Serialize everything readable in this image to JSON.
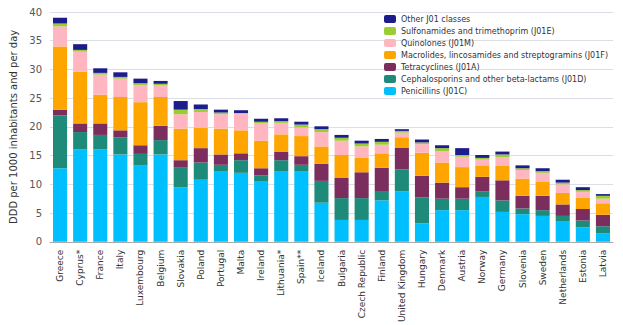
{
  "chart_data": {
    "type": "bar",
    "stacked": true,
    "categories": [
      "Greece",
      "Cyprus*",
      "France",
      "Italy",
      "Luxembourg",
      "Belgium",
      "Slovakia",
      "Poland",
      "Portugal",
      "Malta",
      "Ireland",
      "Lithuania*",
      "Spain**",
      "Iceland",
      "Bulgaria",
      "Czech Republic",
      "Finland",
      "United Kingdom",
      "Hungary",
      "Denmark",
      "Austria",
      "Norway",
      "Germany",
      "Slovenia",
      "Sweden",
      "Netherlands",
      "Estonia",
      "Latvia"
    ],
    "series": [
      {
        "name": "Penicillins (J01C)",
        "color": "#00BFFF",
        "values": [
          12.8,
          16.1,
          16.1,
          15.2,
          13.3,
          15.2,
          9.5,
          10.8,
          12.2,
          12.0,
          10.6,
          12.2,
          12.2,
          6.8,
          3.8,
          3.8,
          7.2,
          8.8,
          3.2,
          5.5,
          5.5,
          7.8,
          5.2,
          4.8,
          4.5,
          3.5,
          2.5,
          1.5
        ]
      },
      {
        "name": "Cephalosporins and other beta-lactams (J01D)",
        "color": "#1E8B7A",
        "values": [
          9.2,
          3.0,
          2.5,
          3.0,
          2.0,
          2.5,
          3.5,
          3.0,
          1.2,
          2.2,
          1.0,
          2.0,
          1.2,
          3.8,
          3.8,
          3.8,
          1.5,
          3.8,
          4.5,
          2.0,
          2.0,
          1.0,
          2.0,
          1.0,
          1.0,
          1.0,
          1.2,
          1.2
        ]
      },
      {
        "name": "Tetracyclines (J01A)",
        "color": "#7B2D5E",
        "values": [
          1.0,
          1.5,
          2.0,
          1.2,
          1.5,
          2.5,
          1.2,
          2.5,
          1.8,
          1.2,
          1.2,
          1.5,
          1.5,
          3.0,
          3.5,
          4.5,
          4.2,
          3.8,
          3.8,
          2.8,
          2.0,
          2.5,
          3.5,
          2.2,
          2.5,
          2.0,
          2.0,
          2.0
        ]
      },
      {
        "name": "Macrolides, lincosamides and streptogramins (J01F)",
        "color": "#FFA500",
        "values": [
          11.0,
          9.0,
          5.0,
          5.8,
          7.5,
          5.0,
          5.5,
          3.5,
          4.5,
          4.0,
          4.8,
          3.0,
          3.5,
          3.0,
          4.0,
          2.5,
          2.5,
          1.8,
          4.0,
          3.5,
          3.5,
          2.0,
          2.5,
          3.0,
          2.5,
          2.0,
          2.0,
          2.0
        ]
      },
      {
        "name": "Quinolones (J01M)",
        "color": "#FFB6C1",
        "values": [
          3.5,
          3.5,
          3.5,
          3.2,
          3.0,
          2.0,
          2.5,
          2.8,
          2.5,
          3.0,
          3.0,
          2.0,
          1.5,
          2.5,
          2.5,
          2.0,
          1.5,
          0.8,
          1.5,
          2.0,
          1.8,
          1.0,
          1.5,
          1.5,
          1.5,
          1.5,
          1.0,
          0.8
        ]
      },
      {
        "name": "Sulfonamides and trimethoprim (J01E)",
        "color": "#9ACD32",
        "values": [
          0.5,
          0.3,
          0.3,
          0.3,
          0.3,
          0.3,
          0.8,
          0.5,
          0.3,
          0.0,
          0.3,
          0.3,
          0.5,
          0.5,
          0.5,
          0.5,
          0.5,
          0.3,
          0.3,
          0.5,
          0.3,
          0.3,
          0.5,
          0.3,
          0.3,
          0.3,
          0.3,
          0.5
        ]
      },
      {
        "name": "Other J01 classes",
        "color": "#1C1C8C",
        "values": [
          1.0,
          1.0,
          0.8,
          0.8,
          0.8,
          0.5,
          1.5,
          0.8,
          0.5,
          0.5,
          0.5,
          0.5,
          0.5,
          0.5,
          0.5,
          0.5,
          0.5,
          0.3,
          0.5,
          0.5,
          1.2,
          0.5,
          0.5,
          0.5,
          0.5,
          0.5,
          0.5,
          0.3
        ]
      }
    ],
    "ylabel": "DDD per 1000 inhabitants and per day",
    "ylim": [
      0,
      40
    ],
    "yticks": [
      0,
      5,
      10,
      15,
      20,
      25,
      30,
      35,
      40
    ],
    "grid": true,
    "legend": "upper right"
  }
}
